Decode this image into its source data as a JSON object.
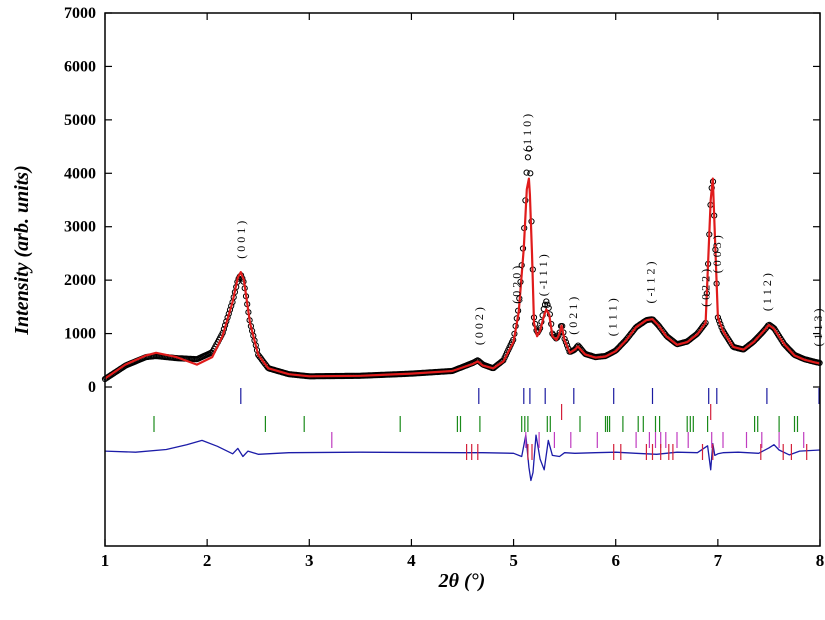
{
  "chart_data": {
    "type": "line",
    "xlabel": "2θ (°)",
    "ylabel": "Intensity (arb. units)",
    "xlim": [
      1,
      8
    ],
    "ylim": [
      0,
      7000
    ],
    "x_ticks": [
      "1",
      "2",
      "3",
      "4",
      "5",
      "6",
      "7",
      "8"
    ],
    "y_ticks": [
      "0",
      "1000",
      "2000",
      "3000",
      "4000",
      "5000",
      "6000",
      "7000"
    ],
    "grid": false,
    "series": [
      {
        "kind": "observed (open circles)",
        "color": "#000000",
        "x": [
          1.0,
          1.2,
          1.4,
          1.5,
          1.7,
          1.9,
          2.05,
          2.15,
          2.25,
          2.3,
          2.33,
          2.36,
          2.42,
          2.5,
          2.6,
          2.8,
          3.0,
          3.5,
          4.0,
          4.4,
          4.6,
          4.65,
          4.7,
          4.8,
          4.9,
          5.0,
          5.05,
          5.1,
          5.13,
          5.15,
          5.16,
          5.18,
          5.2,
          5.23,
          5.26,
          5.3,
          5.32,
          5.35,
          5.38,
          5.42,
          5.45,
          5.47,
          5.5,
          5.55,
          5.6,
          5.63,
          5.7,
          5.8,
          5.9,
          6.0,
          6.1,
          6.2,
          6.3,
          6.36,
          6.42,
          6.5,
          6.6,
          6.7,
          6.8,
          6.88,
          6.93,
          6.95,
          7.0,
          7.05,
          7.15,
          7.25,
          7.35,
          7.45,
          7.5,
          7.55,
          7.65,
          7.75,
          7.85,
          7.95,
          8.0
        ],
        "y": [
          150,
          400,
          560,
          580,
          540,
          520,
          650,
          1000,
          1600,
          2000,
          2100,
          1950,
          1200,
          600,
          350,
          240,
          200,
          210,
          250,
          300,
          450,
          500,
          420,
          350,
          500,
          900,
          1500,
          2800,
          4100,
          4500,
          4300,
          2800,
          1300,
          1000,
          1100,
          1500,
          1600,
          1450,
          1000,
          900,
          1000,
          1200,
          900,
          650,
          700,
          780,
          620,
          560,
          580,
          680,
          880,
          1120,
          1250,
          1270,
          1150,
          950,
          800,
          850,
          1000,
          1200,
          3500,
          3950,
          1300,
          1050,
          750,
          700,
          850,
          1050,
          1170,
          1100,
          800,
          600,
          520,
          470,
          450
        ]
      },
      {
        "kind": "calculated (line)",
        "color": "#e01b1b",
        "x": [
          1.0,
          1.2,
          1.4,
          1.5,
          1.7,
          1.9,
          2.05,
          2.15,
          2.25,
          2.3,
          2.33,
          2.36,
          2.42,
          2.5,
          2.6,
          2.8,
          3.0,
          3.5,
          4.0,
          4.4,
          4.6,
          4.65,
          4.7,
          4.8,
          4.9,
          5.0,
          5.05,
          5.1,
          5.13,
          5.15,
          5.16,
          5.18,
          5.2,
          5.23,
          5.26,
          5.3,
          5.32,
          5.35,
          5.38,
          5.42,
          5.45,
          5.47,
          5.5,
          5.55,
          5.6,
          5.63,
          5.7,
          5.8,
          5.9,
          6.0,
          6.1,
          6.2,
          6.3,
          6.36,
          6.42,
          6.5,
          6.6,
          6.7,
          6.8,
          6.88,
          6.93,
          6.95,
          7.0,
          7.05,
          7.15,
          7.25,
          7.35,
          7.45,
          7.5,
          7.55,
          7.65,
          7.75,
          7.85,
          7.95,
          8.0
        ],
        "y": [
          160,
          420,
          590,
          640,
          560,
          420,
          560,
          950,
          1600,
          2050,
          2150,
          2000,
          1200,
          600,
          350,
          240,
          200,
          210,
          250,
          300,
          430,
          480,
          400,
          350,
          480,
          850,
          1400,
          2600,
          3700,
          3900,
          3600,
          2500,
          1200,
          950,
          1050,
          1350,
          1450,
          1350,
          950,
          880,
          1000,
          1150,
          870,
          640,
          700,
          760,
          610,
          550,
          570,
          670,
          870,
          1120,
          1250,
          1270,
          1150,
          940,
          790,
          840,
          990,
          1200,
          3500,
          3900,
          1300,
          1050,
          750,
          700,
          840,
          1050,
          1160,
          1090,
          800,
          590,
          510,
          460,
          440
        ]
      },
      {
        "kind": "difference (line)",
        "color": "#1c1ca8",
        "x": [
          1.0,
          1.3,
          1.6,
          1.8,
          1.95,
          2.1,
          2.25,
          2.3,
          2.35,
          2.4,
          2.5,
          2.8,
          3.5,
          4.5,
          4.7,
          5.0,
          5.08,
          5.12,
          5.15,
          5.17,
          5.19,
          5.22,
          5.26,
          5.3,
          5.34,
          5.38,
          5.45,
          5.5,
          5.6,
          5.8,
          6.0,
          6.2,
          6.4,
          6.6,
          6.8,
          6.9,
          6.93,
          6.95,
          6.97,
          7.0,
          7.05,
          7.2,
          7.4,
          7.5,
          7.55,
          7.6,
          7.7,
          7.8,
          8.0
        ],
        "y": [
          -1200,
          -1220,
          -1170,
          -1080,
          -1000,
          -1110,
          -1250,
          -1150,
          -1300,
          -1200,
          -1260,
          -1230,
          -1220,
          -1230,
          -1230,
          -1240,
          -1300,
          -900,
          -1500,
          -1750,
          -1600,
          -900,
          -1350,
          -1550,
          -1000,
          -1280,
          -1300,
          -1230,
          -1240,
          -1230,
          -1220,
          -1240,
          -1260,
          -1220,
          -1230,
          -1100,
          -1550,
          -1060,
          -1280,
          -1250,
          -1230,
          -1220,
          -1240,
          -1140,
          -1080,
          -1180,
          -1270,
          -1200,
          -1180
        ]
      }
    ],
    "reflection_ticks": [
      {
        "row": 1,
        "color": "#1a1aa0",
        "x": [
          2.33,
          4.66,
          5.1,
          5.16,
          5.31,
          5.59,
          5.98,
          6.36,
          6.91,
          6.99,
          7.48,
          7.99
        ]
      },
      {
        "row": 2,
        "color": "#d4203a",
        "x": [
          5.47,
          6.93
        ]
      },
      {
        "row": 3,
        "color": "#1a8a1a",
        "x": [
          1.48,
          2.57,
          2.95,
          3.89,
          4.45,
          4.48,
          4.67,
          5.08,
          5.11,
          5.14,
          5.33,
          5.36,
          5.65,
          5.9,
          5.92,
          5.94,
          6.07,
          6.22,
          6.27,
          6.39,
          6.43,
          6.7,
          6.73,
          6.76,
          6.9,
          7.36,
          7.39,
          7.6,
          7.75,
          7.78
        ]
      },
      {
        "row": 4,
        "color": "#c03cc0",
        "x": [
          3.22,
          5.12,
          5.25,
          5.4,
          5.56,
          5.82,
          6.2,
          6.33,
          6.39,
          6.44,
          6.49,
          6.6,
          6.71,
          6.94,
          7.05,
          7.28,
          7.43,
          7.6,
          7.84
        ]
      },
      {
        "row": 5,
        "color": "#d4203a",
        "x": [
          4.54,
          4.59,
          4.65,
          5.14,
          5.18,
          5.98,
          6.05,
          6.3,
          6.36,
          6.44,
          6.52,
          6.56,
          6.85,
          6.95,
          7.42,
          7.64,
          7.72,
          7.87
        ]
      }
    ],
    "peak_labels": [
      {
        "text": "( 0 0 1 )",
        "x": 2.33
      },
      {
        "text": "( 0 0 2 )",
        "x": 4.66
      },
      {
        "text": "( 0 2 0 )",
        "x": 5.03
      },
      {
        "text": "( 1 1 0 )",
        "x": 5.13
      },
      {
        "text": "( -1 1 1 )",
        "x": 5.29
      },
      {
        "text": "( 0 2 1 )",
        "x": 5.58
      },
      {
        "text": "( 1 1 1 )",
        "x": 5.97
      },
      {
        "text": "( -1 1 2 )",
        "x": 6.34
      },
      {
        "text": "( 0 2 2 )",
        "x": 6.88
      },
      {
        "text": "( 0 0 3 )",
        "x": 6.99
      },
      {
        "text": "( 1 1 2 )",
        "x": 7.48
      },
      {
        "text": "( 1 1 3 )",
        "x": 7.98
      }
    ]
  }
}
